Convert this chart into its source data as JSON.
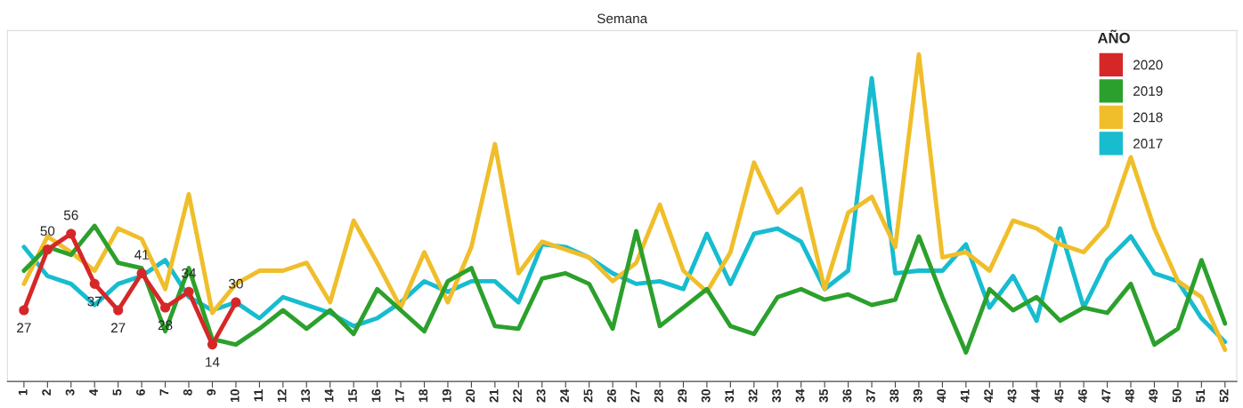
{
  "chart_data": {
    "type": "line",
    "title": "Semana",
    "legend_title": "AÑO",
    "legend": "top right",
    "tick_labels": "x",
    "grid": false,
    "ylim": [
      0,
      133
    ],
    "categories": [
      "1",
      "2",
      "3",
      "4",
      "5",
      "6",
      "7",
      "8",
      "9",
      "10",
      "11",
      "12",
      "13",
      "14",
      "15",
      "16",
      "17",
      "18",
      "19",
      "20",
      "21",
      "22",
      "23",
      "24",
      "25",
      "26",
      "27",
      "28",
      "29",
      "30",
      "31",
      "32",
      "33",
      "34",
      "35",
      "36",
      "37",
      "38",
      "39",
      "40",
      "41",
      "42",
      "43",
      "44",
      "45",
      "46",
      "47",
      "48",
      "49",
      "50",
      "51",
      "52"
    ],
    "series": [
      {
        "name": "2020",
        "color": "#d62728",
        "marker": "circle",
        "values": [
          27,
          50,
          56,
          37,
          27,
          41,
          28,
          34,
          14,
          30,
          null,
          null,
          null,
          null,
          null,
          null,
          null,
          null,
          null,
          null,
          null,
          null,
          null,
          null,
          null,
          null,
          null,
          null,
          null,
          null,
          null,
          null,
          null,
          null,
          null,
          null,
          null,
          null,
          null,
          null,
          null,
          null,
          null,
          null,
          null,
          null,
          null,
          null,
          null,
          null,
          null,
          null
        ],
        "value_labels": [
          "27",
          "50",
          "56",
          "37",
          "27",
          "41",
          "28",
          "34",
          "14",
          "30",
          null,
          null,
          null,
          null,
          null,
          null,
          null,
          null,
          null,
          null,
          null,
          null,
          null,
          null,
          null,
          null,
          null,
          null,
          null,
          null,
          null,
          null,
          null,
          null,
          null,
          null,
          null,
          null,
          null,
          null,
          null,
          null,
          null,
          null,
          null,
          null,
          null,
          null,
          null,
          null,
          null,
          null
        ]
      },
      {
        "name": "2019",
        "color": "#2ca02c",
        "values": [
          42,
          51,
          48,
          59,
          45,
          43,
          19,
          43,
          16,
          14,
          20,
          27,
          20,
          27,
          18,
          35,
          27,
          19,
          38,
          43,
          21,
          20,
          39,
          41,
          37,
          20,
          57,
          21,
          28,
          35,
          21,
          18,
          32,
          35,
          31,
          33,
          29,
          31,
          55,
          32,
          11,
          35,
          27,
          32,
          23,
          28,
          26,
          37,
          14,
          20,
          46,
          22
        ]
      },
      {
        "name": "2018",
        "color": "#f0be2a",
        "values": [
          37,
          55,
          49,
          42,
          58,
          54,
          35,
          71,
          26,
          37,
          42,
          42,
          45,
          30,
          61,
          45,
          28,
          49,
          30,
          51,
          90,
          41,
          53,
          50,
          47,
          38,
          45,
          67,
          42,
          34,
          49,
          83,
          64,
          73,
          35,
          64,
          70,
          51,
          124,
          47,
          49,
          42,
          61,
          58,
          52,
          49,
          59,
          85,
          58,
          38,
          32,
          12
        ]
      },
      {
        "name": "2017",
        "color": "#17bccf",
        "values": [
          51,
          40,
          37,
          29,
          37,
          40,
          46,
          32,
          27,
          30,
          24,
          32,
          29,
          26,
          21,
          24,
          30,
          38,
          34,
          38,
          38,
          30,
          52,
          51,
          47,
          41,
          37,
          38,
          35,
          56,
          37,
          56,
          58,
          53,
          35,
          42,
          115,
          41,
          42,
          42,
          52,
          28,
          40,
          23,
          58,
          28,
          46,
          55,
          41,
          38,
          24,
          15
        ]
      }
    ]
  }
}
